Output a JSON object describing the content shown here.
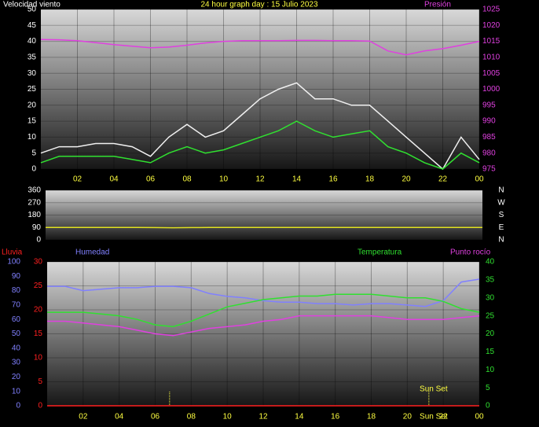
{
  "chart_data": [
    {
      "type": "line",
      "title": "24 hour graph day : 15 Julio 2023",
      "title_color": "#ffff40",
      "labels": [
        {
          "text": "Velocidad viento",
          "color": "#ffffff"
        },
        {
          "text": "Presión",
          "color": "#e040e0"
        }
      ],
      "x": [
        0,
        1,
        2,
        3,
        4,
        5,
        6,
        7,
        8,
        9,
        10,
        11,
        12,
        13,
        14,
        15,
        16,
        17,
        18,
        19,
        20,
        21,
        22,
        23,
        24
      ],
      "xlim": [
        0,
        24
      ],
      "xticks": [
        {
          "value": 2,
          "label": "02"
        },
        {
          "value": 4,
          "label": "04"
        },
        {
          "value": 6,
          "label": "06"
        },
        {
          "value": 8,
          "label": "08"
        },
        10,
        12,
        14,
        16,
        18,
        20,
        22,
        {
          "value": 24,
          "label": "00"
        }
      ],
      "xtick_color": "#ffff40",
      "ylim": [
        0,
        50
      ],
      "yticks": [
        0,
        5,
        10,
        15,
        20,
        25,
        30,
        35,
        40,
        45,
        50
      ],
      "ytick_color": "#ffffff",
      "y2lim": [
        975,
        1025
      ],
      "y2ticks": [
        975,
        980,
        985,
        990,
        995,
        1000,
        1005,
        1010,
        1015,
        1020,
        1025
      ],
      "y2tick_color": "#e040e0",
      "series": [
        {
          "color": "#f0f0f0",
          "values": [
            5,
            7,
            7,
            8,
            8,
            7,
            4,
            10,
            14,
            10,
            12,
            17,
            22,
            25,
            27,
            22,
            22,
            20,
            20,
            15,
            10,
            5,
            0,
            10,
            3
          ]
        },
        {
          "color": "#30e030",
          "values": [
            2,
            4,
            4,
            4,
            4,
            3,
            2,
            5,
            7,
            5,
            6,
            8,
            10,
            12,
            15,
            12,
            10,
            11,
            12,
            7,
            5,
            2,
            0,
            5,
            2
          ]
        },
        {
          "color": "#e040e0",
          "axis": "y2",
          "values": [
            1015.6,
            1015.5,
            1015.2,
            1014.6,
            1014,
            1013.5,
            1013,
            1013.2,
            1013.8,
            1014.5,
            1015,
            1015.2,
            1015.2,
            1015.2,
            1015.3,
            1015.3,
            1015.2,
            1015.2,
            1015.1,
            1012,
            1010.8,
            1012,
            1012.7,
            1013.8,
            1015
          ]
        }
      ]
    },
    {
      "type": "line",
      "x": [
        0,
        1,
        2,
        3,
        4,
        5,
        6,
        7,
        8,
        9,
        10,
        11,
        12,
        13,
        14,
        15,
        16,
        17,
        18,
        19,
        20,
        21,
        22,
        23,
        24
      ],
      "xlim": [
        0,
        24
      ],
      "ylim": [
        0,
        360
      ],
      "yticks": [
        0,
        90,
        180,
        270,
        360
      ],
      "ytick_color": "#ffffff",
      "y2lim": [
        0,
        360
      ],
      "y2ticks": [
        {
          "value": 360,
          "label": "N"
        },
        {
          "value": 270,
          "label": "W"
        },
        {
          "value": 180,
          "label": "S"
        },
        {
          "value": 90,
          "label": "E"
        },
        {
          "value": 0,
          "label": "N"
        }
      ],
      "y2tick_color": "#ffffff",
      "series": [
        {
          "color": "#e0e020",
          "values": [
            90,
            90,
            90,
            90,
            90,
            90,
            89,
            88,
            89,
            90,
            90,
            90,
            90,
            90,
            90,
            90,
            90,
            90,
            90,
            90,
            90,
            90,
            90,
            90,
            90
          ]
        }
      ]
    },
    {
      "type": "line",
      "labels": [
        {
          "text": "Lluvia",
          "color": "#ff2020"
        },
        {
          "text": "Humedad",
          "color": "#8080ff"
        },
        {
          "text": "Temperatura",
          "color": "#30e030"
        },
        {
          "text": "Punto rocío",
          "color": "#e040e0"
        }
      ],
      "x": [
        0,
        1,
        2,
        3,
        4,
        5,
        6,
        7,
        8,
        9,
        10,
        11,
        12,
        13,
        14,
        15,
        16,
        17,
        18,
        19,
        20,
        21,
        22,
        23,
        24
      ],
      "xlim": [
        0,
        24
      ],
      "xticks": [
        {
          "value": 2,
          "label": "02"
        },
        {
          "value": 4,
          "label": "04"
        },
        {
          "value": 6,
          "label": "06"
        },
        {
          "value": 8,
          "label": "08"
        },
        10,
        12,
        14,
        16,
        18,
        20,
        {
          "value": 22,
          "label": "22"
        },
        {
          "value": 24,
          "label": "00"
        }
      ],
      "xtick_color": "#ffff40",
      "ylim": [
        0,
        30
      ],
      "yticks": [
        0,
        5,
        10,
        15,
        20,
        25,
        30
      ],
      "ytick_color": "#ff2020",
      "y2lim": [
        0,
        40
      ],
      "y2ticks": [
        0,
        5,
        10,
        15,
        20,
        25,
        30,
        35,
        40
      ],
      "y2tick_color": "#30e030",
      "y3lim": [
        0,
        100
      ],
      "y3ticks": [
        0,
        10,
        20,
        30,
        40,
        50,
        60,
        70,
        80,
        90,
        100
      ],
      "y3tick_color": "#8080ff",
      "series": [
        {
          "color": "#ff2020",
          "values": [
            0,
            0,
            0,
            0,
            0,
            0,
            0,
            0,
            0,
            0,
            0,
            0,
            0,
            0,
            0,
            0,
            0,
            0,
            0,
            0,
            0,
            0,
            0,
            0,
            0
          ]
        },
        {
          "color": "#8080ff",
          "axis": "y3",
          "values": [
            83,
            83,
            80,
            81,
            82,
            82,
            83,
            83,
            82,
            78,
            76,
            75,
            73,
            72,
            72,
            71,
            71,
            70,
            71,
            71,
            70,
            69,
            73,
            86,
            88
          ]
        },
        {
          "color": "#30e030",
          "axis": "y2",
          "values": [
            26,
            26,
            26,
            25.5,
            25,
            24,
            22.5,
            22,
            23.5,
            25.5,
            27.5,
            28.5,
            29.5,
            30,
            30.5,
            30.5,
            31,
            31,
            31,
            30.5,
            30,
            30,
            29,
            27,
            26
          ]
        },
        {
          "color": "#e040e0",
          "axis": "y2",
          "values": [
            23.5,
            23.5,
            23,
            22.5,
            22,
            21,
            20,
            19.5,
            20.5,
            21.5,
            22,
            22.5,
            23.5,
            24,
            25,
            25,
            25,
            25,
            25,
            24.5,
            24,
            24,
            24,
            24.5,
            25
          ]
        }
      ],
      "markers": [
        6.8,
        21.2
      ],
      "marker_color": "#ffff40",
      "annotations": [
        {
          "x": 21.2,
          "text": "Sun Set"
        },
        {
          "x": 21.2,
          "text": "Sun Set"
        }
      ]
    }
  ]
}
